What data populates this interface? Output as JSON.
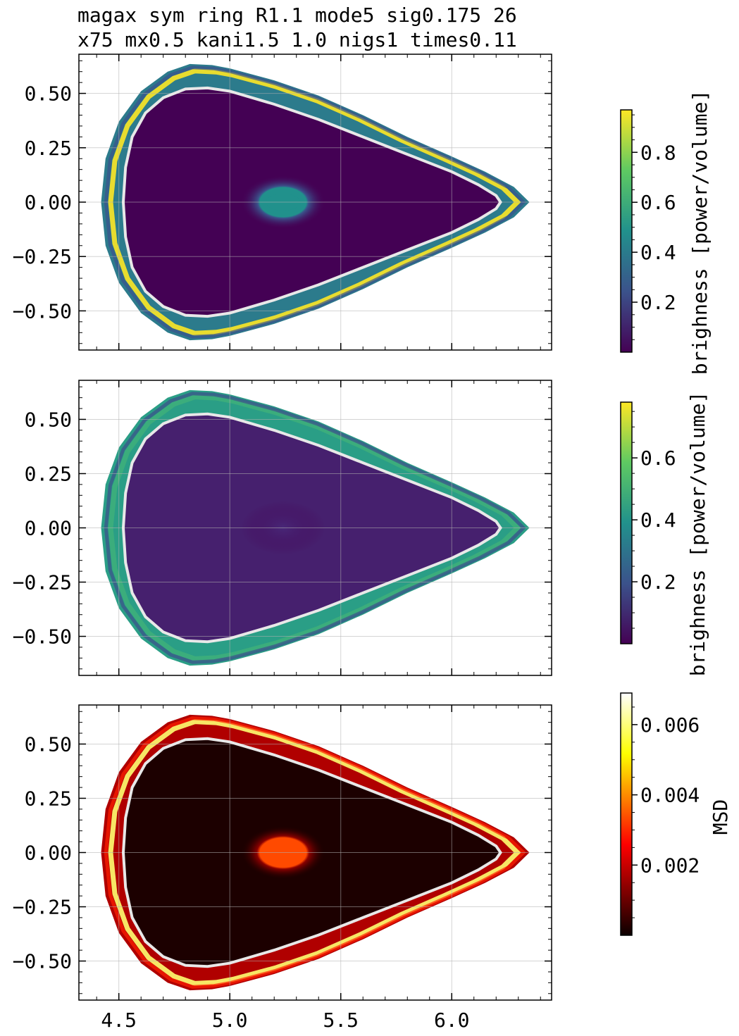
{
  "title_lines": [
    "magax sym ring R1.1 mode5 sig0.175 26",
    "x75 mx0.5 kani1.5 1.0 nigs1 times0.11"
  ],
  "chart_data": [
    {
      "type": "heatmap",
      "panel": "top",
      "colormap": "viridis",
      "xlim": [
        4.32,
        6.45
      ],
      "ylim": [
        -0.68,
        0.68
      ],
      "x_ticks": [],
      "y_ticks": [
        "0.50",
        "0.25",
        "0.00",
        "−0.25",
        "−0.50"
      ],
      "y_tick_values": [
        0.5,
        0.25,
        0.0,
        -0.25,
        -0.5
      ],
      "x_tick_values": [
        4.5,
        5.0,
        5.5,
        6.0
      ],
      "grid": true,
      "colorbar": {
        "label": "brighness [power/volume]",
        "range": [
          0.0,
          0.97
        ],
        "ticks": [
          "0.2",
          "0.4",
          "0.6",
          "0.8"
        ],
        "tick_values": [
          0.2,
          0.4,
          0.6,
          0.8
        ]
      }
    },
    {
      "type": "heatmap",
      "panel": "middle",
      "colormap": "viridis",
      "xlim": [
        4.32,
        6.45
      ],
      "ylim": [
        -0.68,
        0.68
      ],
      "x_ticks": [],
      "y_ticks": [
        "0.50",
        "0.25",
        "0.00",
        "−0.25",
        "−0.50"
      ],
      "y_tick_values": [
        0.5,
        0.25,
        0.0,
        -0.25,
        -0.5
      ],
      "x_tick_values": [
        4.5,
        5.0,
        5.5,
        6.0
      ],
      "grid": true,
      "colorbar": {
        "label": "brighness [power/volume]",
        "range": [
          0.0,
          0.78
        ],
        "ticks": [
          "0.2",
          "0.4",
          "0.6"
        ],
        "tick_values": [
          0.2,
          0.4,
          0.6
        ]
      }
    },
    {
      "type": "heatmap",
      "panel": "bottom",
      "colormap": "hot",
      "xlim": [
        4.32,
        6.45
      ],
      "ylim": [
        -0.68,
        0.68
      ],
      "x_ticks": [
        "4.5",
        "5.0",
        "5.5",
        "6.0"
      ],
      "y_ticks": [
        "0.50",
        "0.25",
        "0.00",
        "−0.25",
        "−0.50"
      ],
      "y_tick_values": [
        0.5,
        0.25,
        0.0,
        -0.25,
        -0.5
      ],
      "x_tick_values": [
        4.5,
        5.0,
        5.5,
        6.0
      ],
      "grid": true,
      "colorbar": {
        "label": "MSD",
        "range": [
          0.0,
          0.0069
        ],
        "ticks": [
          "0.002",
          "0.004",
          "0.006"
        ],
        "tick_values": [
          0.002,
          0.004,
          0.006
        ]
      }
    }
  ],
  "separatrix": [
    [
      4.52,
      0.0
    ],
    [
      4.53,
      0.16
    ],
    [
      4.56,
      0.3
    ],
    [
      4.62,
      0.41
    ],
    [
      4.7,
      0.48
    ],
    [
      4.8,
      0.52
    ],
    [
      4.9,
      0.525
    ],
    [
      5.0,
      0.51
    ],
    [
      5.2,
      0.45
    ],
    [
      5.4,
      0.38
    ],
    [
      5.6,
      0.3
    ],
    [
      5.8,
      0.22
    ],
    [
      6.0,
      0.14
    ],
    [
      6.12,
      0.08
    ],
    [
      6.2,
      0.03
    ],
    [
      6.22,
      0.0
    ],
    [
      6.2,
      -0.03
    ],
    [
      6.12,
      -0.08
    ],
    [
      6.0,
      -0.14
    ],
    [
      5.8,
      -0.22
    ],
    [
      5.6,
      -0.3
    ],
    [
      5.4,
      -0.38
    ],
    [
      5.2,
      -0.45
    ],
    [
      5.0,
      -0.51
    ],
    [
      4.9,
      -0.525
    ],
    [
      4.8,
      -0.52
    ],
    [
      4.7,
      -0.48
    ],
    [
      4.62,
      -0.41
    ],
    [
      4.56,
      -0.3
    ],
    [
      4.53,
      -0.16
    ]
  ],
  "outer_boundary": [
    [
      4.42,
      0.0
    ],
    [
      4.44,
      0.2
    ],
    [
      4.5,
      0.37
    ],
    [
      4.6,
      0.51
    ],
    [
      4.72,
      0.6
    ],
    [
      4.82,
      0.635
    ],
    [
      4.92,
      0.63
    ],
    [
      5.0,
      0.615
    ],
    [
      5.2,
      0.56
    ],
    [
      5.4,
      0.49
    ],
    [
      5.6,
      0.4
    ],
    [
      5.8,
      0.3
    ],
    [
      6.0,
      0.21
    ],
    [
      6.15,
      0.14
    ],
    [
      6.28,
      0.07
    ],
    [
      6.35,
      0.0
    ],
    [
      6.28,
      -0.07
    ],
    [
      6.15,
      -0.14
    ],
    [
      6.0,
      -0.21
    ],
    [
      5.8,
      -0.3
    ],
    [
      5.6,
      -0.4
    ],
    [
      5.4,
      -0.49
    ],
    [
      5.2,
      -0.56
    ],
    [
      5.0,
      -0.615
    ],
    [
      4.92,
      -0.63
    ],
    [
      4.82,
      -0.635
    ],
    [
      4.72,
      -0.6
    ],
    [
      4.6,
      -0.51
    ],
    [
      4.5,
      -0.37
    ],
    [
      4.44,
      -0.2
    ]
  ]
}
